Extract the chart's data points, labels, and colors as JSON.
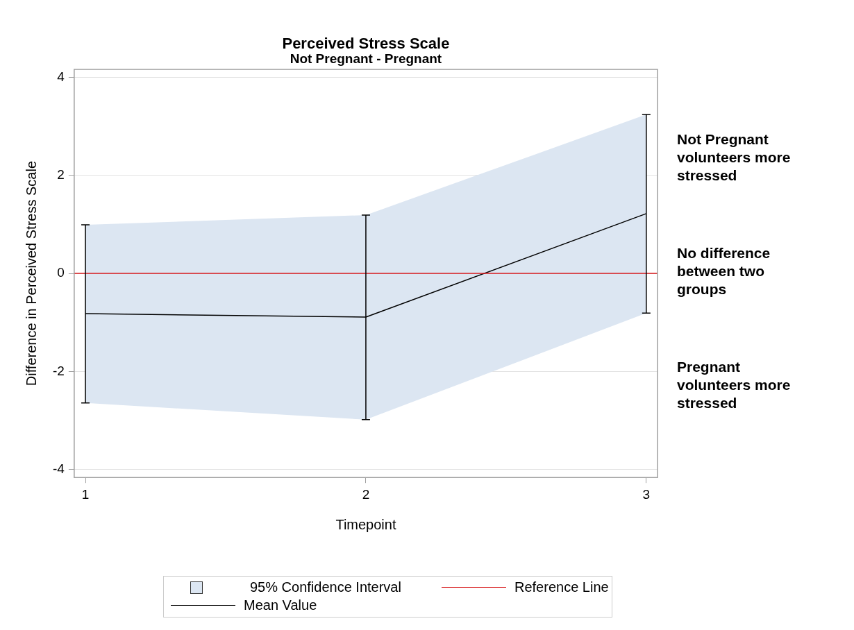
{
  "chart_data": {
    "type": "line",
    "title": "Perceived Stress Scale",
    "subtitle": "Not Pregnant - Pregnant",
    "xlabel": "Timepoint",
    "ylabel": "Difference in Perceived Stress Scale",
    "x": [
      1,
      2,
      3
    ],
    "series": [
      {
        "name": "Mean Value",
        "color": "#000000",
        "values": [
          -0.82,
          -0.89,
          1.22
        ],
        "errors": [
          [
            -2.64,
            0.99
          ],
          [
            -2.98,
            1.19
          ],
          [
            -0.81,
            3.24
          ]
        ],
        "lower": [
          -2.64,
          -2.98,
          -0.81
        ],
        "upper": [
          0.99,
          1.19,
          3.24
        ]
      }
    ],
    "ref_lines": [
      {
        "axis": "y",
        "value": 0,
        "label": "Reference Line",
        "color": "#d7191c"
      }
    ],
    "annotations": [
      "95% Confidence Interval",
      "Not Pregnant volunteers more stressed",
      "No difference between two groups",
      "Pregnant volunteers more stressed"
    ],
    "xlim": [
      0.96,
      3.04
    ],
    "xticks": [
      1,
      2,
      3
    ],
    "ylim": [
      -4.16,
      4.16
    ],
    "yticks": [
      -4,
      -2,
      0,
      2,
      4
    ],
    "grid": "y",
    "legend": "bottom",
    "marker": "none",
    "line_style": "solid"
  }
}
